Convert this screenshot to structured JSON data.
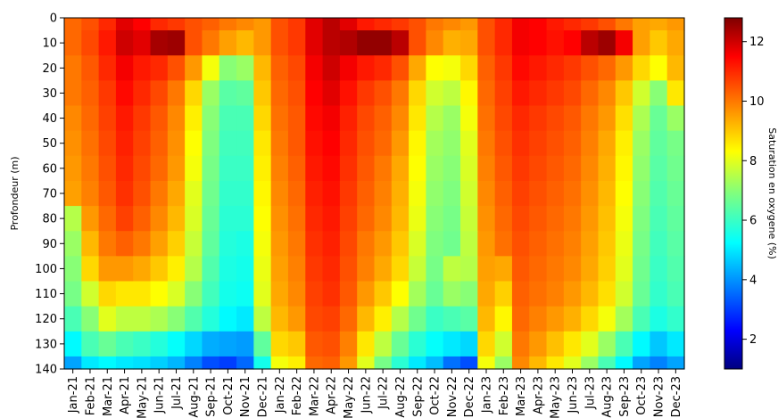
{
  "chart_data": {
    "type": "heatmap",
    "title": "",
    "xlabel": "",
    "ylabel": "Profondeur (m)",
    "colorbar_label": "Saturation en oxygene (%)",
    "colormap": "jet",
    "ylim": [
      140,
      0
    ],
    "clim": [
      1,
      12.8
    ],
    "x_ticks": [
      "Jan-21",
      "Feb-21",
      "Mar-21",
      "Apr-21",
      "May-21",
      "Jun-21",
      "Jul-21",
      "Aug-21",
      "Sep-21",
      "Oct-21",
      "Nov-21",
      "Dec-21",
      "Jan-22",
      "Feb-22",
      "Mar-22",
      "Apr-22",
      "May-22",
      "Jun-22",
      "Jul-22",
      "Aug-22",
      "Sep-22",
      "Oct-22",
      "Nov-22",
      "Dec-22",
      "Jan-23",
      "Feb-23",
      "Mar-23",
      "Apr-23",
      "May-23",
      "Jun-23",
      "Jul-23",
      "Aug-23",
      "Sep-23",
      "Oct-23",
      "Nov-23",
      "Dec-23"
    ],
    "y_ticks": [
      "0",
      "10",
      "20",
      "30",
      "40",
      "50",
      "60",
      "70",
      "80",
      "90",
      "100",
      "110",
      "120",
      "130",
      "140"
    ],
    "colorbar_ticks": [
      "2",
      "4",
      "6",
      "8",
      "10",
      "12"
    ],
    "depths": [
      0,
      10,
      20,
      30,
      40,
      50,
      60,
      70,
      80,
      90,
      100,
      110,
      120,
      130,
      140
    ],
    "months": [
      "Jan-21",
      "Feb-21",
      "Mar-21",
      "Apr-21",
      "May-21",
      "Jun-21",
      "Jul-21",
      "Aug-21",
      "Sep-21",
      "Oct-21",
      "Nov-21",
      "Dec-21",
      "Jan-22",
      "Feb-22",
      "Mar-22",
      "Apr-22",
      "May-22",
      "Jun-22",
      "Jul-22",
      "Aug-22",
      "Sep-22",
      "Oct-22",
      "Nov-22",
      "Dec-22",
      "Jan-23",
      "Feb-23",
      "Mar-23",
      "Apr-23",
      "May-23",
      "Jun-23",
      "Jul-23",
      "Aug-23",
      "Sep-23",
      "Oct-23",
      "Nov-23",
      "Dec-23"
    ],
    "values": [
      [
        10.2,
        10.5,
        11.0,
        11.8,
        11.5,
        11.0,
        10.8,
        10.5,
        10.3,
        10.0,
        9.8,
        9.6,
        10.5,
        10.8,
        11.8,
        12.2,
        11.8,
        11.2,
        11.0,
        10.8,
        10.5,
        10.0,
        9.8,
        9.6,
        10.5,
        11.0,
        11.6,
        11.5,
        11.2,
        11.0,
        10.8,
        10.5,
        10.0,
        9.5,
        9.4,
        9.6
      ],
      [
        10.2,
        10.6,
        11.2,
        12.0,
        11.8,
        12.4,
        12.5,
        10.5,
        10.0,
        9.5,
        9.2,
        9.6,
        10.5,
        10.8,
        11.8,
        12.2,
        12.3,
        12.6,
        12.6,
        12.2,
        10.5,
        9.8,
        9.3,
        9.4,
        10.5,
        11.0,
        11.6,
        11.5,
        11.3,
        11.5,
        12.2,
        12.5,
        11.6,
        9.5,
        9.0,
        9.4
      ],
      [
        10.0,
        10.4,
        11.0,
        11.6,
        11.2,
        11.0,
        10.5,
        9.6,
        8.2,
        7.0,
        7.2,
        9.2,
        10.3,
        10.6,
        11.6,
        12.0,
        11.6,
        11.2,
        11.0,
        10.5,
        9.4,
        8.3,
        8.2,
        8.8,
        10.3,
        10.8,
        11.4,
        11.2,
        11.0,
        10.8,
        10.5,
        10.2,
        9.6,
        8.8,
        8.3,
        9.2
      ],
      [
        10.0,
        10.3,
        10.8,
        11.4,
        11.0,
        10.6,
        10.0,
        8.8,
        7.2,
        6.4,
        6.5,
        9.0,
        10.2,
        10.5,
        11.5,
        11.8,
        11.3,
        10.8,
        10.5,
        10.0,
        8.8,
        7.8,
        7.6,
        8.4,
        10.2,
        10.7,
        11.2,
        11.0,
        10.8,
        10.6,
        10.2,
        9.8,
        9.0,
        7.8,
        7.0,
        8.6
      ],
      [
        9.8,
        10.2,
        10.7,
        11.2,
        10.8,
        10.4,
        9.8,
        8.5,
        7.0,
        6.2,
        6.2,
        8.8,
        10.1,
        10.4,
        11.4,
        11.6,
        11.1,
        10.6,
        10.3,
        9.8,
        8.6,
        7.5,
        7.2,
        8.2,
        10.1,
        10.6,
        11.0,
        10.8,
        10.6,
        10.4,
        10.0,
        9.6,
        8.7,
        7.4,
        6.6,
        7.2
      ],
      [
        9.7,
        10.1,
        10.6,
        11.1,
        10.7,
        10.3,
        9.7,
        8.3,
        6.9,
        6.1,
        6.1,
        8.6,
        10.0,
        10.4,
        11.3,
        11.5,
        11.0,
        10.5,
        10.2,
        9.6,
        8.4,
        7.3,
        7.1,
        8.0,
        10.0,
        10.5,
        10.9,
        10.7,
        10.5,
        10.3,
        9.9,
        9.4,
        8.5,
        7.2,
        6.5,
        6.8
      ],
      [
        9.6,
        10.0,
        10.5,
        11.0,
        10.6,
        10.2,
        9.6,
        8.2,
        6.8,
        6.0,
        6.0,
        8.5,
        9.9,
        10.3,
        11.2,
        11.4,
        10.9,
        10.4,
        10.0,
        9.4,
        8.3,
        7.2,
        7.0,
        7.9,
        9.9,
        10.4,
        10.8,
        10.6,
        10.4,
        10.2,
        9.8,
        9.3,
        8.4,
        7.1,
        6.4,
        6.7
      ],
      [
        9.5,
        9.9,
        10.4,
        10.9,
        10.5,
        10.0,
        9.4,
        8.0,
        6.7,
        5.9,
        5.9,
        8.4,
        9.8,
        10.2,
        11.1,
        11.3,
        10.8,
        10.3,
        9.9,
        9.3,
        8.2,
        7.1,
        6.9,
        7.8,
        9.8,
        10.3,
        10.7,
        10.5,
        10.3,
        10.1,
        9.7,
        9.2,
        8.3,
        7.0,
        6.3,
        6.6
      ],
      [
        7.5,
        9.6,
        10.2,
        10.7,
        10.3,
        9.8,
        9.2,
        7.9,
        6.6,
        5.8,
        5.8,
        8.3,
        9.7,
        10.1,
        11.0,
        11.2,
        10.7,
        10.2,
        9.8,
        9.2,
        8.1,
        7.0,
        6.8,
        7.7,
        9.7,
        10.2,
        10.6,
        10.4,
        10.2,
        10.0,
        9.6,
        9.1,
        8.2,
        6.9,
        6.2,
        6.5
      ],
      [
        7.2,
        9.2,
        10.0,
        10.3,
        10.0,
        9.5,
        8.9,
        7.7,
        6.5,
        5.7,
        5.6,
        8.2,
        9.6,
        10.0,
        10.9,
        11.1,
        10.6,
        10.0,
        9.6,
        9.0,
        7.9,
        6.9,
        6.7,
        7.6,
        9.6,
        10.1,
        10.5,
        10.3,
        10.1,
        9.9,
        9.5,
        9.0,
        8.1,
        6.8,
        6.1,
        6.4
      ],
      [
        7.0,
        8.8,
        9.6,
        9.6,
        9.4,
        9.0,
        8.5,
        7.5,
        6.3,
        5.6,
        5.5,
        8.1,
        9.5,
        9.9,
        10.8,
        11.0,
        10.5,
        9.9,
        9.4,
        8.8,
        7.7,
        6.8,
        7.6,
        7.5,
        9.5,
        9.4,
        10.4,
        10.2,
        10.0,
        9.8,
        9.4,
        8.9,
        8.0,
        6.7,
        6.0,
        6.3
      ],
      [
        6.8,
        7.8,
        8.8,
        8.6,
        8.6,
        8.3,
        7.9,
        7.0,
        6.1,
        5.5,
        5.4,
        8.0,
        9.4,
        9.8,
        10.7,
        10.9,
        10.4,
        9.6,
        9.0,
        8.3,
        7.3,
        6.6,
        7.2,
        7.0,
        9.4,
        8.9,
        10.3,
        10.1,
        9.9,
        9.6,
        9.2,
        8.7,
        7.8,
        6.6,
        5.9,
        6.2
      ],
      [
        6.2,
        7.0,
        8.0,
        7.6,
        7.6,
        7.4,
        7.0,
        6.3,
        5.7,
        5.2,
        5.0,
        7.6,
        9.2,
        9.6,
        10.6,
        10.7,
        10.2,
        9.2,
        8.5,
        7.5,
        6.7,
        6.0,
        6.2,
        6.4,
        9.2,
        8.4,
        10.2,
        9.9,
        9.6,
        9.3,
        8.8,
        8.2,
        7.3,
        6.2,
        5.6,
        5.9
      ],
      [
        5.2,
        6.2,
        6.6,
        6.2,
        6.0,
        5.7,
        5.3,
        4.8,
        4.3,
        4.2,
        4.1,
        6.5,
        8.8,
        9.0,
        10.4,
        10.5,
        9.9,
        8.6,
        7.6,
        6.6,
        5.8,
        5.3,
        5.0,
        4.8,
        8.8,
        7.8,
        10.0,
        9.6,
        9.1,
        8.6,
        8.0,
        7.2,
        6.2,
        5.2,
        4.6,
        5.0
      ],
      [
        4.2,
        5.0,
        5.2,
        5.0,
        4.9,
        4.7,
        4.4,
        3.8,
        3.2,
        3.0,
        3.5,
        5.5,
        8.2,
        8.5,
        10.2,
        10.3,
        9.6,
        8.0,
        6.8,
        5.8,
        5.0,
        4.5,
        3.6,
        3.2,
        8.2,
        7.2,
        9.8,
        9.2,
        8.6,
        8.0,
        7.2,
        6.2,
        5.2,
        4.2,
        3.8,
        4.2
      ]
    ]
  }
}
